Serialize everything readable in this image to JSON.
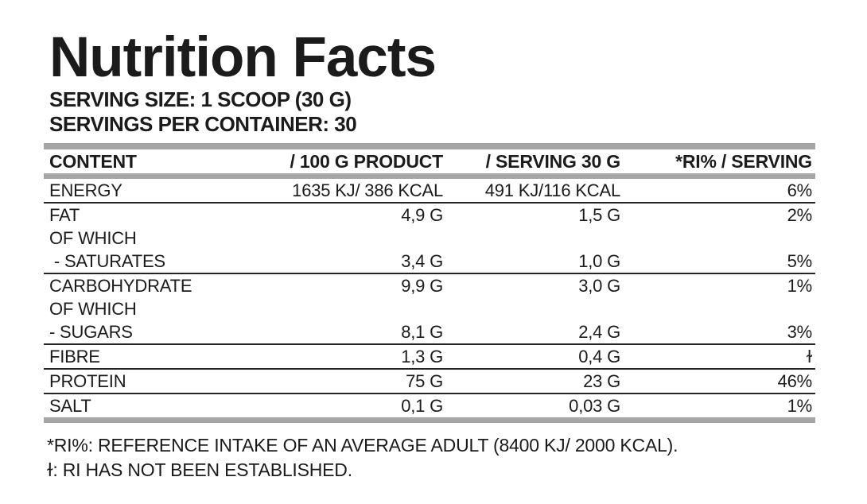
{
  "title": "Nutrition Facts",
  "serving_size_line": "SERVING SIZE: 1 SCOOP (30 G)",
  "servings_per_container_line": "SERVINGS PER CONTAINER: 30",
  "table": {
    "headers": [
      "CONTENT",
      "/ 100 G PRODUCT",
      "/ SERVING 30 G",
      "*RI% / SERVING"
    ],
    "rows": [
      {
        "label": "ENERGY",
        "per_100g": "1635 KJ/ 386 KCAL",
        "per_serving": "491 KJ/116 KCAL",
        "ri_per_serving": "6%"
      },
      {
        "label": "FAT",
        "per_100g": "4,9 G",
        "per_serving": "1,5 G",
        "ri_per_serving": "2%"
      },
      {
        "label": "OF WHICH",
        "per_100g": "",
        "per_serving": "",
        "ri_per_serving": ""
      },
      {
        "label": " - SATURATES",
        "per_100g": "3,4 G",
        "per_serving": "1,0 G",
        "ri_per_serving": "5%"
      },
      {
        "label": "CARBOHYDRATE",
        "per_100g": "9,9 G",
        "per_serving": "3,0 G",
        "ri_per_serving": "1%"
      },
      {
        "label": "OF WHICH",
        "per_100g": "",
        "per_serving": "",
        "ri_per_serving": ""
      },
      {
        "label": "- SUGARS",
        "per_100g": "8,1 G",
        "per_serving": "2,4 G",
        "ri_per_serving": "3%"
      },
      {
        "label": "FIBRE",
        "per_100g": "1,3 G",
        "per_serving": "0,4 G",
        "ri_per_serving": "ɫ"
      },
      {
        "label": "PROTEIN",
        "per_100g": "75 G",
        "per_serving": "23 G",
        "ri_per_serving": "46%"
      },
      {
        "label": "SALT",
        "per_100g": "0,1 G",
        "per_serving": "0,03 G",
        "ri_per_serving": "1%"
      }
    ]
  },
  "footnotes": [
    "*RI%: REFERENCE INTAKE OF AN AVERAGE ADULT (8400 KJ/ 2000 KCAL).",
    "ɫ: RI HAS NOT BEEN ESTABLISHED."
  ],
  "colors": {
    "text": "#1b1b1b",
    "bar_gray": "#a6a6a6",
    "divider": "#242424",
    "background": "#ffffff"
  }
}
